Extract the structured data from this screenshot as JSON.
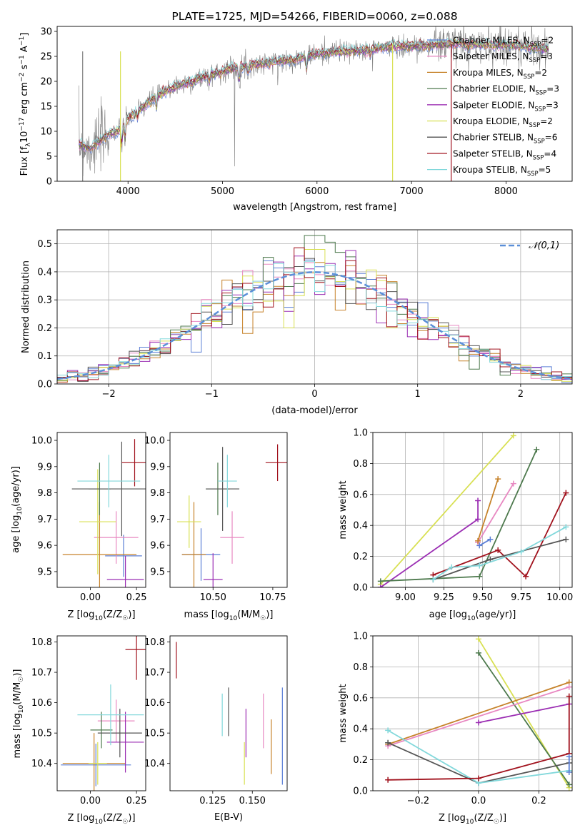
{
  "colors": {
    "Chabrier MILES": "#5b7fd6",
    "Salpeter MILES": "#e889c2",
    "Kroupa MILES": "#c6822a",
    "Chabrier ELODIE": "#4e7a4e",
    "Salpeter ELODIE": "#9b2eb3",
    "Kroupa ELODIE": "#d8e053",
    "Chabrier STELIB": "#555555",
    "Salpeter STELIB": "#a1121d",
    "Kroupa STELIB": "#82d8db",
    "normal": "#5b8fd8",
    "data_spectrum": "#7f7f7f"
  },
  "chart_data": [
    {
      "id": "spectrum",
      "type": "line",
      "title": "PLATE=1725, MJD=54266, FIBERID=0060, z=0.088",
      "xlabel": "wavelength [Angstrom, rest frame]",
      "ylabel": "Flux [f_λ10^{-17} erg cm^{-2} s^{-1} A^{-1}]",
      "xlim": [
        3250,
        8700
      ],
      "ylim": [
        0,
        31
      ],
      "xticks": [
        4000,
        5000,
        6000,
        7000,
        8000
      ],
      "yticks": [
        0,
        5,
        10,
        15,
        20,
        25,
        30
      ],
      "legend": [
        {
          "name": "Chabrier MILES",
          "nssp": 2
        },
        {
          "name": "Salpeter MILES",
          "nssp": 3
        },
        {
          "name": "Kroupa MILES",
          "nssp": 2
        },
        {
          "name": "Chabrier ELODIE",
          "nssp": 3
        },
        {
          "name": "Salpeter ELODIE",
          "nssp": 3
        },
        {
          "name": "Kroupa ELODIE",
          "nssp": 2
        },
        {
          "name": "Chabrier STELIB",
          "nssp": 6
        },
        {
          "name": "Salpeter STELIB",
          "nssp": 4
        },
        {
          "name": "Kroupa STELIB",
          "nssp": 5
        }
      ],
      "legend_placement": "upper-right",
      "continuum": {
        "x": [
          3480,
          3600,
          3700,
          3800,
          3900,
          4000,
          4100,
          4200,
          4300,
          4400,
          4500,
          4600,
          4700,
          4800,
          5000,
          5200,
          5400,
          5600,
          5800,
          6000,
          6200,
          6400,
          6600,
          6800,
          7000,
          7200,
          7400,
          7600,
          7800,
          8000,
          8200,
          8450
        ],
        "y": [
          7.5,
          6.5,
          8,
          9.5,
          10,
          12.5,
          14,
          15.5,
          17,
          18,
          19,
          19.5,
          20,
          21,
          22,
          23,
          23.5,
          24,
          24.5,
          25.5,
          26,
          26,
          26.5,
          27,
          27,
          27.2,
          27.5,
          27.5,
          27.3,
          27.3,
          27,
          26.5
        ]
      },
      "bad_pixels": [
        {
          "x": 3520,
          "color_key": "data_spectrum"
        },
        {
          "x": 3920,
          "color_key": "Kroupa ELODIE"
        },
        {
          "x": 6800,
          "color_key": "Kroupa ELODIE"
        },
        {
          "x": 7420,
          "color_key": "Salpeter STELIB"
        }
      ]
    },
    {
      "id": "residuals",
      "type": "histogram",
      "xlabel": "(data-model)/error",
      "ylabel": "Normed distribution",
      "xlim": [
        -2.5,
        2.5
      ],
      "ylim": [
        0,
        0.55
      ],
      "xticks": [
        -2,
        -1,
        0,
        1,
        2
      ],
      "yticks": [
        0.0,
        0.1,
        0.2,
        0.3,
        0.4,
        0.5
      ],
      "grid": true,
      "legend": "𝒩(0,1)",
      "legend_placement": "upper-right",
      "bin_width": 0.1,
      "bins_from": -2.5
    },
    {
      "id": "age_vs_Z",
      "type": "errorbar",
      "xlabel": "Z [log10(Z/Z☉)]",
      "ylabel": "age [log10(age/yr)]",
      "xlim": [
        -0.18,
        0.3
      ],
      "ylim": [
        9.44,
        10.03
      ],
      "xticks": [
        0.0,
        0.25
      ],
      "yticks": [
        9.5,
        9.6,
        9.7,
        9.8,
        9.9,
        10.0
      ],
      "points": [
        {
          "series": "Chabrier MILES",
          "x": 0.18,
          "y": 9.56,
          "xerr": 0.1,
          "yerr": 0.08
        },
        {
          "series": "Salpeter MILES",
          "x": 0.14,
          "y": 9.63,
          "xerr": 0.12,
          "yerr": 0.1
        },
        {
          "series": "Kroupa MILES",
          "x": 0.05,
          "y": 9.565,
          "xerr": 0.2,
          "yerr": 0.2
        },
        {
          "series": "Chabrier ELODIE",
          "x": 0.05,
          "y": 9.815,
          "xerr": 0.06,
          "yerr": 0.1
        },
        {
          "series": "Salpeter ELODIE",
          "x": 0.19,
          "y": 9.47,
          "xerr": 0.1,
          "yerr": 0.09
        },
        {
          "series": "Kroupa ELODIE",
          "x": 0.04,
          "y": 9.69,
          "xerr": 0.1,
          "yerr": 0.2
        },
        {
          "series": "Chabrier STELIB",
          "x": 0.17,
          "y": 9.815,
          "xerr": 0.27,
          "yerr": 0.18
        },
        {
          "series": "Salpeter STELIB",
          "x": 0.24,
          "y": 9.915,
          "xerr": 0.07,
          "yerr": 0.09
        },
        {
          "series": "Kroupa STELIB",
          "x": 0.1,
          "y": 9.845,
          "xerr": 0.17,
          "yerr": 0.1
        }
      ]
    },
    {
      "id": "age_vs_mass",
      "type": "errorbar",
      "xlabel": "mass [log10(M/M☉)]",
      "ylabel": "",
      "xlim": [
        10.32,
        10.81
      ],
      "ylim": [
        9.44,
        10.03
      ],
      "xticks": [
        10.5,
        10.75
      ],
      "yticks": [
        9.5,
        9.6,
        9.7,
        9.8,
        9.9,
        10.0
      ],
      "points": [
        {
          "series": "Chabrier MILES",
          "x": 10.45,
          "y": 9.565,
          "xerr": 0.08,
          "yerr": 0.1
        },
        {
          "series": "Salpeter MILES",
          "x": 10.58,
          "y": 9.63,
          "xerr": 0.05,
          "yerr": 0.1
        },
        {
          "series": "Kroupa MILES",
          "x": 10.42,
          "y": 9.565,
          "xerr": 0.05,
          "yerr": 0.2
        },
        {
          "series": "Chabrier ELODIE",
          "x": 10.52,
          "y": 9.815,
          "xerr": 0.05,
          "yerr": 0.1
        },
        {
          "series": "Salpeter ELODIE",
          "x": 10.5,
          "y": 9.47,
          "xerr": 0.04,
          "yerr": 0.1
        },
        {
          "series": "Kroupa ELODIE",
          "x": 10.4,
          "y": 9.69,
          "xerr": 0.05,
          "yerr": 0.1
        },
        {
          "series": "Chabrier STELIB",
          "x": 10.54,
          "y": 9.815,
          "xerr": 0.07,
          "yerr": 0.16
        },
        {
          "series": "Salpeter STELIB",
          "x": 10.77,
          "y": 9.915,
          "xerr": 0.05,
          "yerr": 0.07
        },
        {
          "series": "Kroupa STELIB",
          "x": 10.56,
          "y": 9.845,
          "xerr": 0.04,
          "yerr": 0.1
        }
      ]
    },
    {
      "id": "weight_vs_age",
      "type": "line",
      "xlabel": "age [log10(age/yr)]",
      "ylabel": "mass weight",
      "xlim": [
        8.79,
        10.08
      ],
      "ylim": [
        0,
        1
      ],
      "xticks": [
        9.0,
        9.25,
        9.5,
        9.75,
        10.0
      ],
      "yticks": [
        0.0,
        0.2,
        0.4,
        0.6,
        0.8,
        1.0
      ],
      "grid": true,
      "series": [
        {
          "name": "Kroupa ELODIE",
          "x": [
            8.84,
            9.7
          ],
          "y": [
            0.02,
            0.98
          ]
        },
        {
          "name": "Salpeter ELODIE",
          "x": [
            8.84,
            9.47,
            9.47
          ],
          "y": [
            0.0,
            0.44,
            0.56
          ]
        },
        {
          "name": "Chabrier ELODIE",
          "x": [
            8.84,
            9.48,
            9.85
          ],
          "y": [
            0.04,
            0.07,
            0.89
          ]
        },
        {
          "name": "Salpeter MILES",
          "x": [
            9.47,
            9.7
          ],
          "y": [
            0.29,
            0.67
          ]
        },
        {
          "name": "Kroupa MILES",
          "x": [
            9.47,
            9.6
          ],
          "y": [
            0.3,
            0.7
          ]
        },
        {
          "name": "Salpeter STELIB",
          "x": [
            9.18,
            9.6,
            9.78,
            10.04
          ],
          "y": [
            0.08,
            0.24,
            0.07,
            0.61
          ]
        },
        {
          "name": "Chabrier STELIB",
          "x": [
            9.18,
            9.55,
            10.04
          ],
          "y": [
            0.05,
            0.18,
            0.31
          ]
        },
        {
          "name": "Kroupa STELIB",
          "x": [
            9.18,
            9.3,
            9.48,
            9.75,
            10.04
          ],
          "y": [
            0.05,
            0.13,
            0.14,
            0.23,
            0.39
          ]
        },
        {
          "name": "Chabrier MILES",
          "x": [
            9.48,
            9.55
          ],
          "y": [
            0.27,
            0.31
          ]
        }
      ]
    },
    {
      "id": "mass_vs_Z",
      "type": "errorbar",
      "xlabel": "Z [log10(Z/Z☉)]",
      "ylabel": "mass [log10(M/M☉)]",
      "xlim": [
        -0.18,
        0.3
      ],
      "ylim": [
        10.31,
        10.82
      ],
      "xticks": [
        0.0,
        0.25
      ],
      "yticks": [
        10.4,
        10.5,
        10.6,
        10.7,
        10.8
      ],
      "points": [
        {
          "series": "Chabrier MILES",
          "x": 0.03,
          "y": 10.395,
          "xerr": 0.19,
          "yerr": 0.07
        },
        {
          "series": "Salpeter MILES",
          "x": 0.14,
          "y": 10.54,
          "xerr": 0.1,
          "yerr": 0.07
        },
        {
          "series": "Kroupa MILES",
          "x": 0.02,
          "y": 10.4,
          "xerr": 0.17,
          "yerr": 0.1
        },
        {
          "series": "Chabrier ELODIE",
          "x": 0.06,
          "y": 10.51,
          "xerr": 0.06,
          "yerr": 0.06
        },
        {
          "series": "Salpeter ELODIE",
          "x": 0.19,
          "y": 10.47,
          "xerr": 0.1,
          "yerr": 0.1
        },
        {
          "series": "Kroupa ELODIE",
          "x": 0.04,
          "y": 10.4,
          "xerr": 0.05,
          "yerr": 0.07
        },
        {
          "series": "Chabrier STELIB",
          "x": 0.16,
          "y": 10.5,
          "xerr": 0.12,
          "yerr": 0.08
        },
        {
          "series": "Salpeter STELIB",
          "x": 0.25,
          "y": 10.775,
          "xerr": 0.06,
          "yerr": 0.1
        },
        {
          "series": "Kroupa STELIB",
          "x": 0.11,
          "y": 10.56,
          "xerr": 0.18,
          "yerr": 0.1
        }
      ]
    },
    {
      "id": "mass_vs_ebv",
      "type": "errorbar",
      "xlabel": "E(B-V)",
      "ylabel": "",
      "xlim": [
        0.098,
        0.172
      ],
      "ylim": [
        10.31,
        10.82
      ],
      "xticks": [
        0.125,
        0.15
      ],
      "yticks": [
        10.4,
        10.5,
        10.6,
        10.7,
        10.8
      ],
      "points": [
        {
          "series": "Salpeter STELIB",
          "x": 0.102,
          "y": 10.74,
          "yerr": 0.06
        },
        {
          "series": "Kroupa STELIB",
          "x": 0.131,
          "y": 10.56,
          "yerr": 0.07
        },
        {
          "series": "Chabrier STELIB",
          "x": 0.135,
          "y": 10.57,
          "yerr": 0.08
        },
        {
          "series": "Salpeter ELODIE",
          "x": 0.146,
          "y": 10.5,
          "yerr": 0.08
        },
        {
          "series": "Kroupa ELODIE",
          "x": 0.145,
          "y": 10.4,
          "yerr": 0.07
        },
        {
          "series": "Salpeter MILES",
          "x": 0.157,
          "y": 10.54,
          "yerr": 0.09
        },
        {
          "series": "Kroupa MILES",
          "x": 0.162,
          "y": 10.455,
          "yerr": 0.09
        },
        {
          "series": "Chabrier MILES",
          "x": 0.169,
          "y": 10.49,
          "yerr": 0.16
        }
      ]
    },
    {
      "id": "weight_vs_Z",
      "type": "line",
      "xlabel": "Z [log10(Z/Z☉)]",
      "ylabel": "mass weight",
      "xlim": [
        -0.35,
        0.31
      ],
      "ylim": [
        0,
        1
      ],
      "xticks": [
        -0.2,
        0.0,
        0.2
      ],
      "yticks": [
        0.0,
        0.2,
        0.4,
        0.6,
        0.8,
        1.0
      ],
      "grid": true,
      "series": [
        {
          "name": "Kroupa ELODIE",
          "x": [
            0.0,
            0.3
          ],
          "y": [
            0.98,
            0.02
          ]
        },
        {
          "name": "Chabrier ELODIE",
          "x": [
            0.0,
            0.3
          ],
          "y": [
            0.89,
            0.04
          ]
        },
        {
          "name": "Kroupa MILES",
          "x": [
            -0.3,
            0.3
          ],
          "y": [
            0.3,
            0.7
          ]
        },
        {
          "name": "Salpeter MILES",
          "x": [
            -0.3,
            0.3
          ],
          "y": [
            0.29,
            0.67
          ]
        },
        {
          "name": "Salpeter ELODIE",
          "x": [
            0.0,
            0.3
          ],
          "y": [
            0.44,
            0.56
          ]
        },
        {
          "name": "Chabrier STELIB",
          "x": [
            -0.3,
            0.0,
            0.3
          ],
          "y": [
            0.31,
            0.05,
            0.18
          ]
        },
        {
          "name": "Kroupa STELIB",
          "x": [
            -0.3,
            0.0,
            0.3
          ],
          "y": [
            0.39,
            0.05,
            0.13
          ]
        },
        {
          "name": "Salpeter STELIB",
          "x": [
            -0.3,
            0.0,
            0.3,
            0.3
          ],
          "y": [
            0.07,
            0.08,
            0.24,
            0.61
          ]
        },
        {
          "name": "Chabrier MILES",
          "x": [
            0.3,
            0.3
          ],
          "y": [
            0.22,
            0.12
          ]
        }
      ]
    }
  ]
}
